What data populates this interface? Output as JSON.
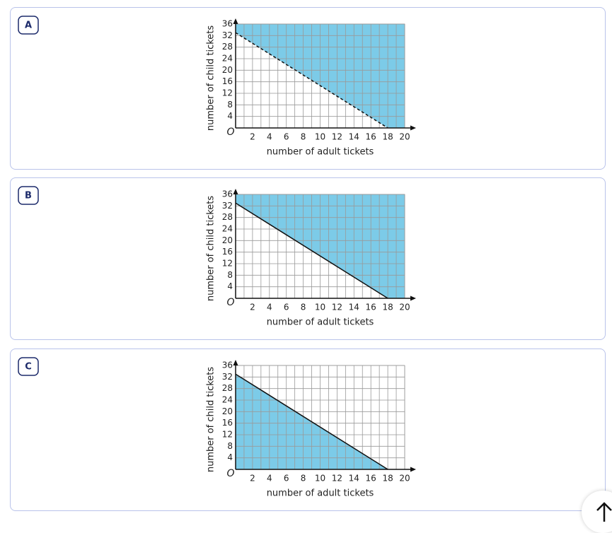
{
  "options": [
    {
      "label": "A",
      "graph": {
        "xlabel": "number of adult tickets",
        "ylabel": "number of child tickets",
        "origin": "O",
        "xlim": [
          0,
          20
        ],
        "ylim": [
          0,
          36
        ],
        "xticks": [
          2,
          4,
          6,
          8,
          10,
          12,
          14,
          16,
          18,
          20
        ],
        "yticks": [
          4,
          8,
          12,
          16,
          20,
          24,
          28,
          32,
          36
        ],
        "line": {
          "x": [
            0,
            18
          ],
          "y": [
            33,
            0
          ],
          "dashed": true
        },
        "shade": "above",
        "color": "#7ccbe8"
      }
    },
    {
      "label": "B",
      "graph": {
        "xlabel": "number of adult tickets",
        "ylabel": "number of child tickets",
        "origin": "O",
        "xlim": [
          0,
          20
        ],
        "ylim": [
          0,
          36
        ],
        "xticks": [
          2,
          4,
          6,
          8,
          10,
          12,
          14,
          16,
          18,
          20
        ],
        "yticks": [
          4,
          8,
          12,
          16,
          20,
          24,
          28,
          32,
          36
        ],
        "line": {
          "x": [
            0,
            18
          ],
          "y": [
            33,
            0
          ],
          "dashed": false
        },
        "shade": "above",
        "color": "#7ccbe8"
      }
    },
    {
      "label": "C",
      "graph": {
        "xlabel": "number of adult tickets",
        "ylabel": "number of child tickets",
        "origin": "O",
        "xlim": [
          0,
          20
        ],
        "ylim": [
          0,
          36
        ],
        "xticks": [
          2,
          4,
          6,
          8,
          10,
          12,
          14,
          16,
          18,
          20
        ],
        "yticks": [
          4,
          8,
          12,
          16,
          20,
          24,
          28,
          32,
          36
        ],
        "line": {
          "x": [
            0,
            18
          ],
          "y": [
            33,
            0
          ],
          "dashed": false
        },
        "shade": "below",
        "color": "#7ccbe8"
      }
    }
  ]
}
